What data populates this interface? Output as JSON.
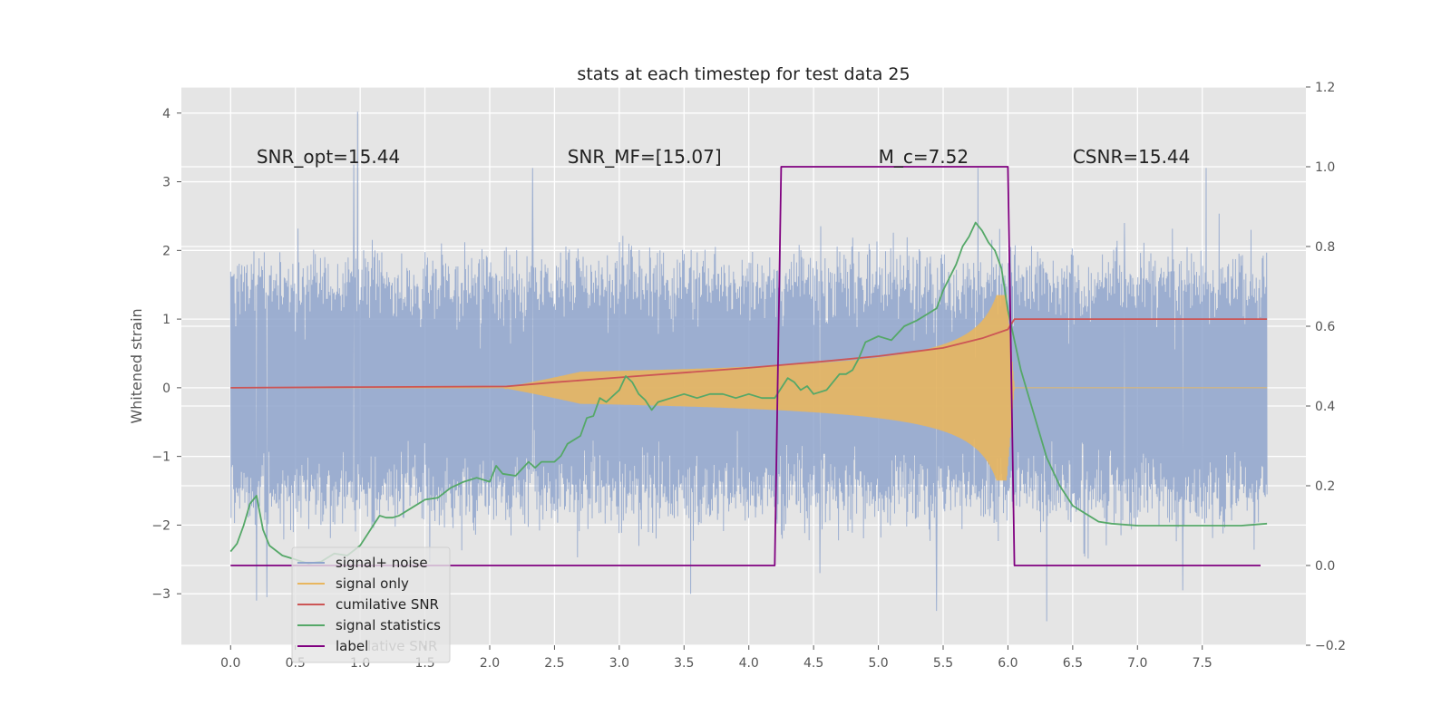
{
  "chart_data": {
    "type": "line",
    "title": "stats at each timestep for test data 25",
    "ylabel": "Whitened strain",
    "xlim": [
      -0.38,
      8.3
    ],
    "ylim": [
      -3.75,
      4.38
    ],
    "y2lim": [
      -0.2,
      1.2
    ],
    "x_ticks": [
      0.0,
      0.5,
      1.0,
      1.5,
      2.0,
      2.5,
      3.0,
      3.5,
      4.0,
      4.5,
      5.0,
      5.5,
      6.0,
      6.5,
      7.0,
      7.5
    ],
    "x_tick_labels": [
      "0.0",
      "0.5",
      "1.0",
      "1.5",
      "2.0",
      "2.5",
      "3.0",
      "3.5",
      "4.0",
      "4.5",
      "5.0",
      "5.5",
      "6.0",
      "6.5",
      "7.0",
      "7.5"
    ],
    "y_ticks": [
      4,
      3,
      2,
      1,
      0,
      -1,
      -2,
      -3
    ],
    "y_tick_labels": [
      "4",
      "3",
      "2",
      "1",
      "0",
      "−1",
      "−2",
      "−3"
    ],
    "y2_ticks": [
      1.2,
      1.0,
      0.8,
      0.6,
      0.4,
      0.2,
      0.0,
      -0.2
    ],
    "y2_tick_labels": [
      "1.2",
      "1.0",
      "0.8",
      "0.6",
      "0.4",
      "0.2",
      "0.0",
      "−0.2"
    ],
    "grid": true,
    "legend_position": "lower-left",
    "annotations": [
      {
        "text": "SNR_opt=15.44",
        "x": 0.2,
        "y": 3.27
      },
      {
        "text": "SNR_MF=[15.07]",
        "x": 2.6,
        "y": 3.27
      },
      {
        "text": "M_c=7.52",
        "x": 5.0,
        "y": 3.27
      },
      {
        "text": "CSNR=15.44",
        "x": 6.5,
        "y": 3.27
      }
    ],
    "legend_ghost_text": "lative SNR",
    "series": [
      {
        "name": "signal+ noise",
        "color": "#8fa5cc",
        "axis": "left",
        "style": "noise",
        "x_range": [
          0.0,
          8.0
        ],
        "typical_range": [
          -1.7,
          1.7
        ],
        "peaks": [
          [
            0.98,
            4.02
          ],
          [
            0.95,
            3.25
          ],
          [
            2.33,
            3.2
          ],
          [
            7.53,
            3.2
          ],
          [
            6.9,
            2.4
          ],
          [
            5.77,
            3.2
          ],
          [
            0.2,
            -3.1
          ],
          [
            0.28,
            -3.05
          ],
          [
            3.55,
            -3.0
          ],
          [
            6.3,
            -3.4
          ],
          [
            5.45,
            -3.25
          ],
          [
            4.55,
            -2.7
          ],
          [
            7.35,
            -2.95
          ]
        ]
      },
      {
        "name": "signal only",
        "color": "#e8b65f",
        "axis": "left",
        "style": "chirp",
        "start": 2.1,
        "merger": 6.05,
        "peak_amplitude": 1.0,
        "x_range": [
          0.0,
          8.0
        ]
      },
      {
        "name": "cumilative SNR",
        "color": "#cc5555",
        "axis": "left",
        "x": [
          0.0,
          1.0,
          2.13,
          2.5,
          3.0,
          3.5,
          4.0,
          4.5,
          5.0,
          5.5,
          5.8,
          6.0,
          6.05,
          8.0
        ],
        "y": [
          0.0,
          0.01,
          0.02,
          0.08,
          0.15,
          0.22,
          0.29,
          0.37,
          0.46,
          0.58,
          0.72,
          0.85,
          1.0,
          1.0
        ]
      },
      {
        "name": "signal statistics",
        "color": "#55a868",
        "axis": "right",
        "x": [
          0.0,
          0.05,
          0.1,
          0.15,
          0.2,
          0.25,
          0.3,
          0.4,
          0.5,
          0.6,
          0.7,
          0.8,
          0.9,
          1.0,
          1.05,
          1.1,
          1.15,
          1.2,
          1.25,
          1.3,
          1.4,
          1.5,
          1.6,
          1.7,
          1.8,
          1.9,
          2.0,
          2.05,
          2.1,
          2.2,
          2.3,
          2.35,
          2.4,
          2.45,
          2.5,
          2.55,
          2.6,
          2.7,
          2.75,
          2.8,
          2.85,
          2.9,
          2.95,
          3.0,
          3.05,
          3.1,
          3.15,
          3.2,
          3.25,
          3.3,
          3.4,
          3.5,
          3.6,
          3.7,
          3.8,
          3.9,
          4.0,
          4.1,
          4.2,
          4.25,
          4.3,
          4.35,
          4.4,
          4.45,
          4.5,
          4.6,
          4.7,
          4.75,
          4.8,
          4.85,
          4.9,
          5.0,
          5.05,
          5.1,
          5.2,
          5.3,
          5.4,
          5.45,
          5.5,
          5.6,
          5.65,
          5.7,
          5.75,
          5.8,
          5.85,
          5.9,
          5.95,
          6.0,
          6.1,
          6.2,
          6.3,
          6.4,
          6.5,
          6.6,
          6.7,
          6.8,
          7.0,
          7.2,
          7.4,
          7.6,
          7.8,
          8.0
        ],
        "y": [
          0.035,
          0.055,
          0.1,
          0.155,
          0.175,
          0.09,
          0.05,
          0.025,
          0.015,
          0.005,
          0.01,
          0.03,
          0.025,
          0.05,
          0.075,
          0.1,
          0.125,
          0.12,
          0.12,
          0.125,
          0.145,
          0.165,
          0.17,
          0.195,
          0.21,
          0.22,
          0.21,
          0.25,
          0.23,
          0.225,
          0.26,
          0.245,
          0.26,
          0.26,
          0.26,
          0.275,
          0.305,
          0.325,
          0.37,
          0.375,
          0.42,
          0.41,
          0.425,
          0.44,
          0.475,
          0.46,
          0.43,
          0.415,
          0.39,
          0.41,
          0.42,
          0.43,
          0.42,
          0.43,
          0.43,
          0.42,
          0.43,
          0.42,
          0.42,
          0.445,
          0.47,
          0.46,
          0.44,
          0.45,
          0.43,
          0.44,
          0.48,
          0.48,
          0.49,
          0.52,
          0.56,
          0.575,
          0.57,
          0.565,
          0.6,
          0.615,
          0.635,
          0.645,
          0.69,
          0.755,
          0.8,
          0.825,
          0.86,
          0.84,
          0.81,
          0.79,
          0.745,
          0.64,
          0.49,
          0.38,
          0.27,
          0.2,
          0.15,
          0.13,
          0.11,
          0.105,
          0.1,
          0.1,
          0.1,
          0.1,
          0.1,
          0.105
        ]
      },
      {
        "name": "label",
        "color": "#800080",
        "axis": "right",
        "x": [
          0.0,
          4.2,
          4.25,
          6.0,
          6.05,
          7.95
        ],
        "y": [
          0.0,
          0.0,
          1.0,
          1.0,
          0.0,
          0.0
        ]
      }
    ]
  }
}
